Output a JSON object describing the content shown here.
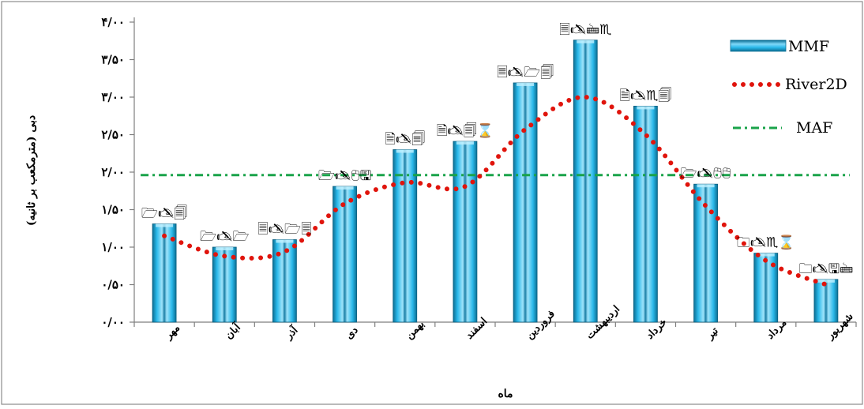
{
  "chart_data": {
    "type": "bar",
    "title": "",
    "xlabel": "ماه",
    "ylabel": "دبی (مترمکعب بر ثانیه)",
    "ylim": [
      0,
      4
    ],
    "y_ticks": [
      0,
      0.5,
      1,
      1.5,
      2,
      2.5,
      3,
      3.5,
      4
    ],
    "y_tick_labels": [
      "۰/۰۰",
      "۰/۵۰",
      "۱/۰۰",
      "۱/۵۰",
      "۲/۰۰",
      "۲/۵۰",
      "۳/۰۰",
      "۳/۵۰",
      "۴/۰۰"
    ],
    "categories": [
      "مهر",
      "آبان",
      "آذر",
      "دی",
      "بهمن",
      "اسفند",
      "فروردین",
      "اردیبهشت",
      "خرداد",
      "تیر",
      "مرداد",
      "شهریور"
    ],
    "series": [
      {
        "name": "MMF",
        "type": "bar",
        "color": "#29b5e8",
        "values": [
          1.31,
          1.0,
          1.1,
          1.81,
          2.3,
          2.41,
          3.19,
          3.76,
          2.88,
          1.84,
          0.92,
          0.57
        ]
      },
      {
        "name": "River2D",
        "type": "line",
        "style": "dotted",
        "color": "#e0140c",
        "values": [
          1.15,
          0.88,
          0.94,
          1.58,
          1.86,
          1.81,
          2.57,
          3.0,
          2.5,
          1.55,
          0.82,
          0.5
        ]
      },
      {
        "name": "MAF",
        "type": "line",
        "style": "dash-dot",
        "color": "#1aa34a",
        "values": [
          1.96,
          1.96,
          1.96,
          1.96,
          1.96,
          1.96,
          1.96,
          1.96,
          1.96,
          1.96,
          1.96,
          1.96
        ]
      }
    ],
    "data_labels": [
      "🗁🖎🗐",
      "🗁🖎🗁",
      "🗏🖎🗁🗏",
      "🗁🖎🖰🖫",
      "🗎🖎🗐",
      "🗎🖎🗐⌛",
      "🗏🖎🗁🗐",
      "🗏🖎🖮♏",
      "🗎🖎♏🗐",
      "🗁🖎🖰🖰",
      "🗀🖎♏⌛",
      "🗀🖎🖫🖮"
    ],
    "legend": {
      "placement": "top-right",
      "entries": [
        "MMF",
        "River2D",
        "MAF"
      ]
    },
    "grid": false
  }
}
